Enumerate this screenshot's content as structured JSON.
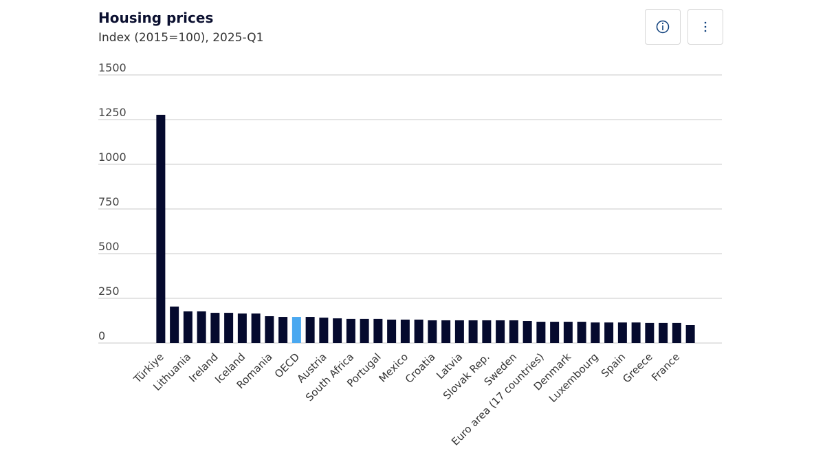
{
  "chart_data": {
    "type": "bar",
    "title": "Housing prices",
    "subtitle": "Index (2015=100), 2025-Q1",
    "categories": [
      "Türkiye",
      null,
      "Lithuania",
      null,
      "Ireland",
      null,
      "Iceland",
      null,
      "Romania",
      null,
      "OECD",
      null,
      "Austria",
      null,
      "South Africa",
      null,
      "Portugal",
      null,
      "Mexico",
      null,
      "Croatia",
      null,
      "Latvia",
      null,
      "Slovak Rep.",
      null,
      "Sweden",
      null,
      "Euro area (17 countries)",
      null,
      "Denmark",
      null,
      "Luxembourg",
      null,
      "Spain",
      null,
      "Greece",
      null,
      "France",
      null
    ],
    "values": [
      1277,
      204,
      177,
      177,
      169,
      169,
      165,
      165,
      150,
      146,
      146,
      146,
      142,
      138,
      135,
      135,
      135,
      131,
      131,
      131,
      127,
      127,
      127,
      127,
      127,
      127,
      127,
      123,
      119,
      119,
      119,
      119,
      115,
      115,
      115,
      115,
      112,
      112,
      112,
      100
    ],
    "colors": [
      "#050a2e",
      "#050a2e",
      "#050a2e",
      "#050a2e",
      "#050a2e",
      "#050a2e",
      "#050a2e",
      "#050a2e",
      "#050a2e",
      "#050a2e",
      "#4aa8f0",
      "#050a2e",
      "#050a2e",
      "#050a2e",
      "#050a2e",
      "#050a2e",
      "#050a2e",
      "#050a2e",
      "#050a2e",
      "#050a2e",
      "#050a2e",
      "#050a2e",
      "#050a2e",
      "#050a2e",
      "#050a2e",
      "#050a2e",
      "#050a2e",
      "#050a2e",
      "#050a2e",
      "#050a2e",
      "#050a2e",
      "#050a2e",
      "#050a2e",
      "#050a2e",
      "#050a2e",
      "#050a2e",
      "#050a2e",
      "#050a2e",
      "#050a2e",
      "#050a2e"
    ],
    "ylim": [
      0,
      1500
    ],
    "yticks": [
      0,
      250,
      500,
      750,
      1000,
      1250,
      1500
    ],
    "grid": true
  }
}
